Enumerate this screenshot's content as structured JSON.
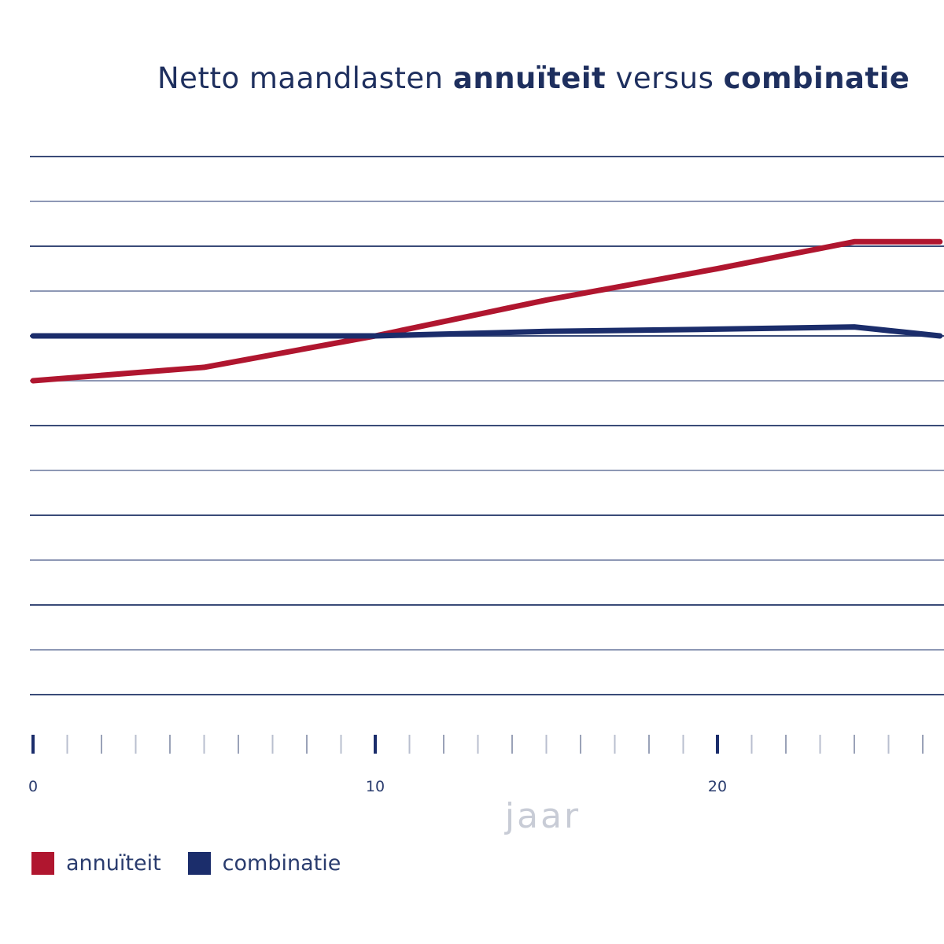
{
  "chart_data": {
    "type": "line",
    "title_parts": [
      {
        "text": "Netto maandlasten ",
        "bold": false
      },
      {
        "text": "annuïteit",
        "bold": true
      },
      {
        "text": " versus ",
        "bold": false
      },
      {
        "text": "combinatie",
        "bold": true
      }
    ],
    "xlabel": "jaar",
    "ylabel": "",
    "x_ticks_labeled": [
      0,
      10,
      20
    ],
    "x_minor_step": 1,
    "xlim": [
      0,
      26.5
    ],
    "gridlines": 13,
    "grid": true,
    "legend_position": "bottom-left",
    "series": [
      {
        "name": "annuïteit",
        "color": "#b0162f",
        "x": [
          0,
          5,
          10,
          15,
          20,
          24,
          26.5
        ],
        "y": [
          17.0,
          16.7,
          16.0,
          15.2,
          14.5,
          13.9,
          13.9
        ]
      },
      {
        "name": "combinatie",
        "color": "#1b2d6b",
        "x": [
          0,
          5,
          10,
          15,
          20,
          24,
          26.5
        ],
        "y": [
          16.0,
          16.0,
          16.0,
          15.9,
          15.85,
          15.8,
          16.0
        ]
      }
    ]
  },
  "legend": {
    "items": [
      {
        "label": "annuïteit",
        "color": "#b0162f"
      },
      {
        "label": "combinatie",
        "color": "#1b2d6b"
      }
    ]
  }
}
